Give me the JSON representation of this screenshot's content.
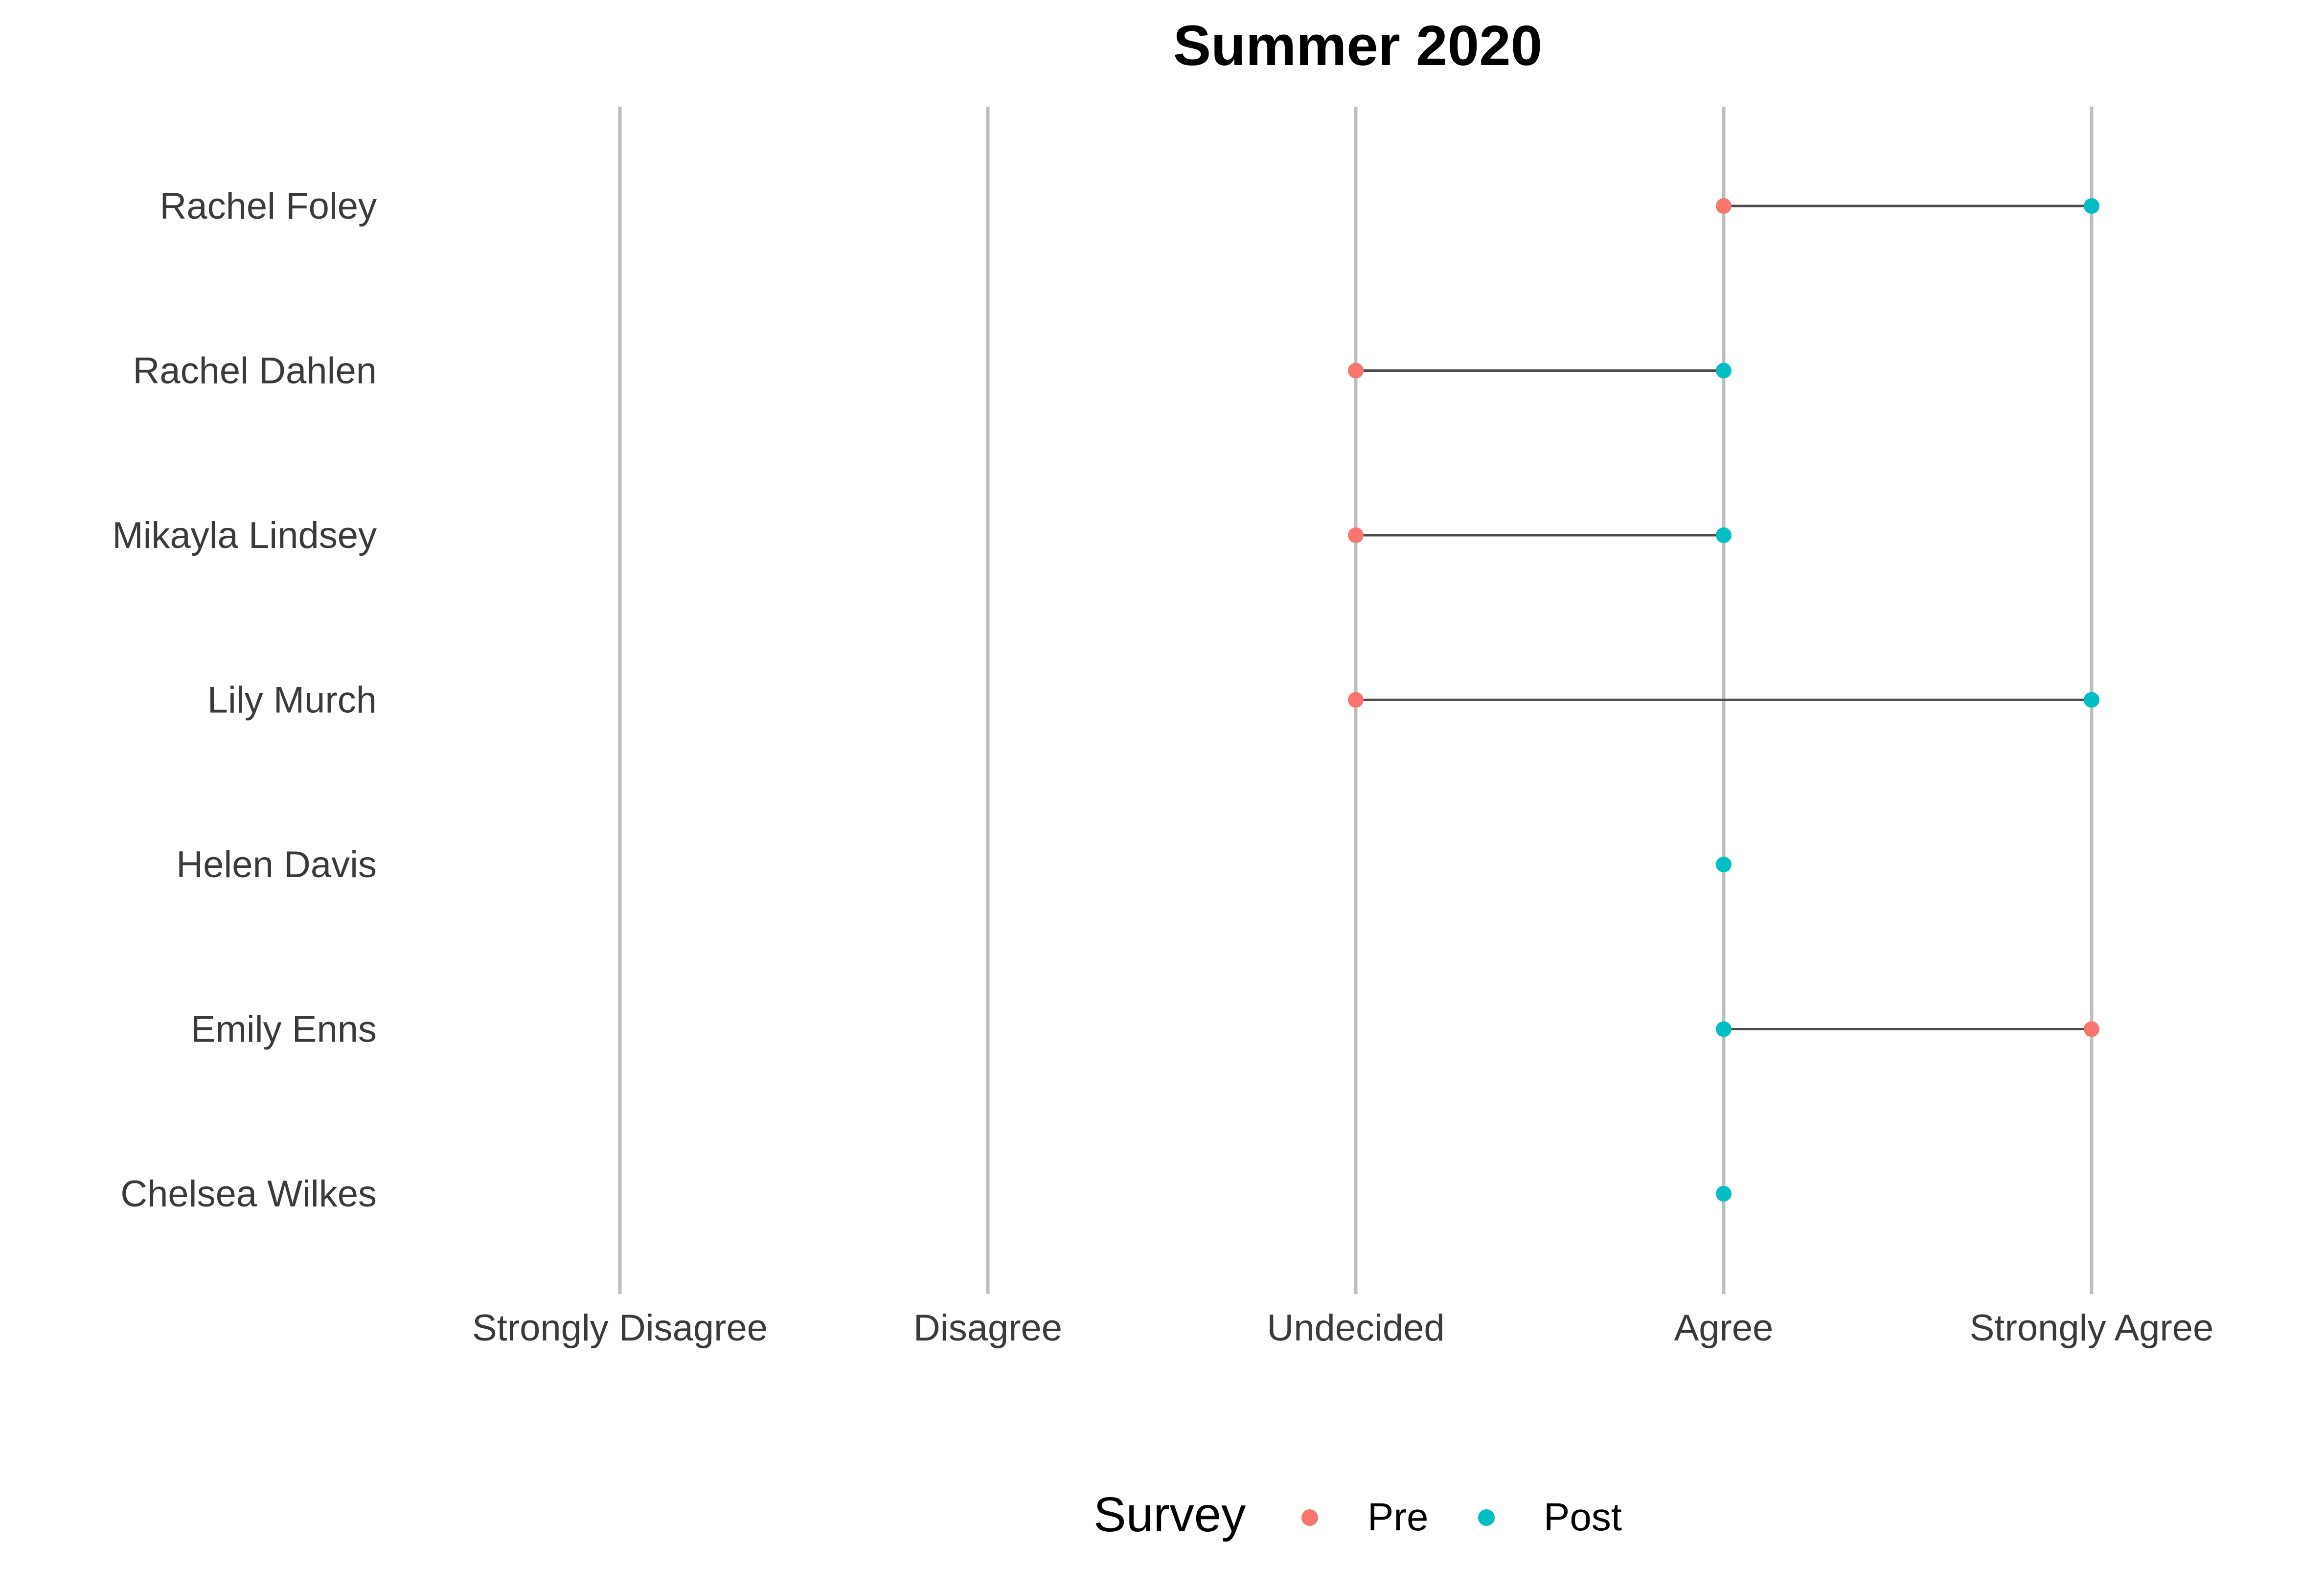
{
  "chart_data": {
    "type": "dumbbell",
    "title": "Summer 2020",
    "xlabel": "",
    "ylabel": "",
    "x_categories": [
      "Strongly Disagree",
      "Disagree",
      "Undecided",
      "Agree",
      "Strongly Agree"
    ],
    "y_categories": [
      "Rachel Foley",
      "Rachel Dahlen",
      "Mikayla Lindsey",
      "Lily Murch",
      "Helen Davis",
      "Emily Enns",
      "Chelsea Wilkes"
    ],
    "grid": {
      "vertical_major": true,
      "horizontal": false
    },
    "legend": {
      "title": "Survey",
      "position": "bottom",
      "entries": [
        {
          "label": "Pre",
          "color": "#F8766D"
        },
        {
          "label": "Post",
          "color": "#00BFC4"
        }
      ]
    },
    "series": [
      {
        "name": "Pre",
        "color": "#F8766D",
        "points": [
          {
            "person": "Rachel Foley",
            "response": "Agree"
          },
          {
            "person": "Rachel Dahlen",
            "response": "Undecided"
          },
          {
            "person": "Mikayla Lindsey",
            "response": "Undecided"
          },
          {
            "person": "Lily Murch",
            "response": "Undecided"
          },
          {
            "person": "Emily Enns",
            "response": "Strongly Agree"
          }
        ]
      },
      {
        "name": "Post",
        "color": "#00BFC4",
        "points": [
          {
            "person": "Rachel Foley",
            "response": "Strongly Agree"
          },
          {
            "person": "Rachel Dahlen",
            "response": "Agree"
          },
          {
            "person": "Mikayla Lindsey",
            "response": "Agree"
          },
          {
            "person": "Lily Murch",
            "response": "Strongly Agree"
          },
          {
            "person": "Helen Davis",
            "response": "Agree"
          },
          {
            "person": "Emily Enns",
            "response": "Agree"
          },
          {
            "person": "Chelsea Wilkes",
            "response": "Agree"
          }
        ]
      }
    ],
    "colors": {
      "gridline": "#BEBEBE",
      "segment": "#4D4D4D",
      "tick_text": "#3a3a3a"
    }
  }
}
